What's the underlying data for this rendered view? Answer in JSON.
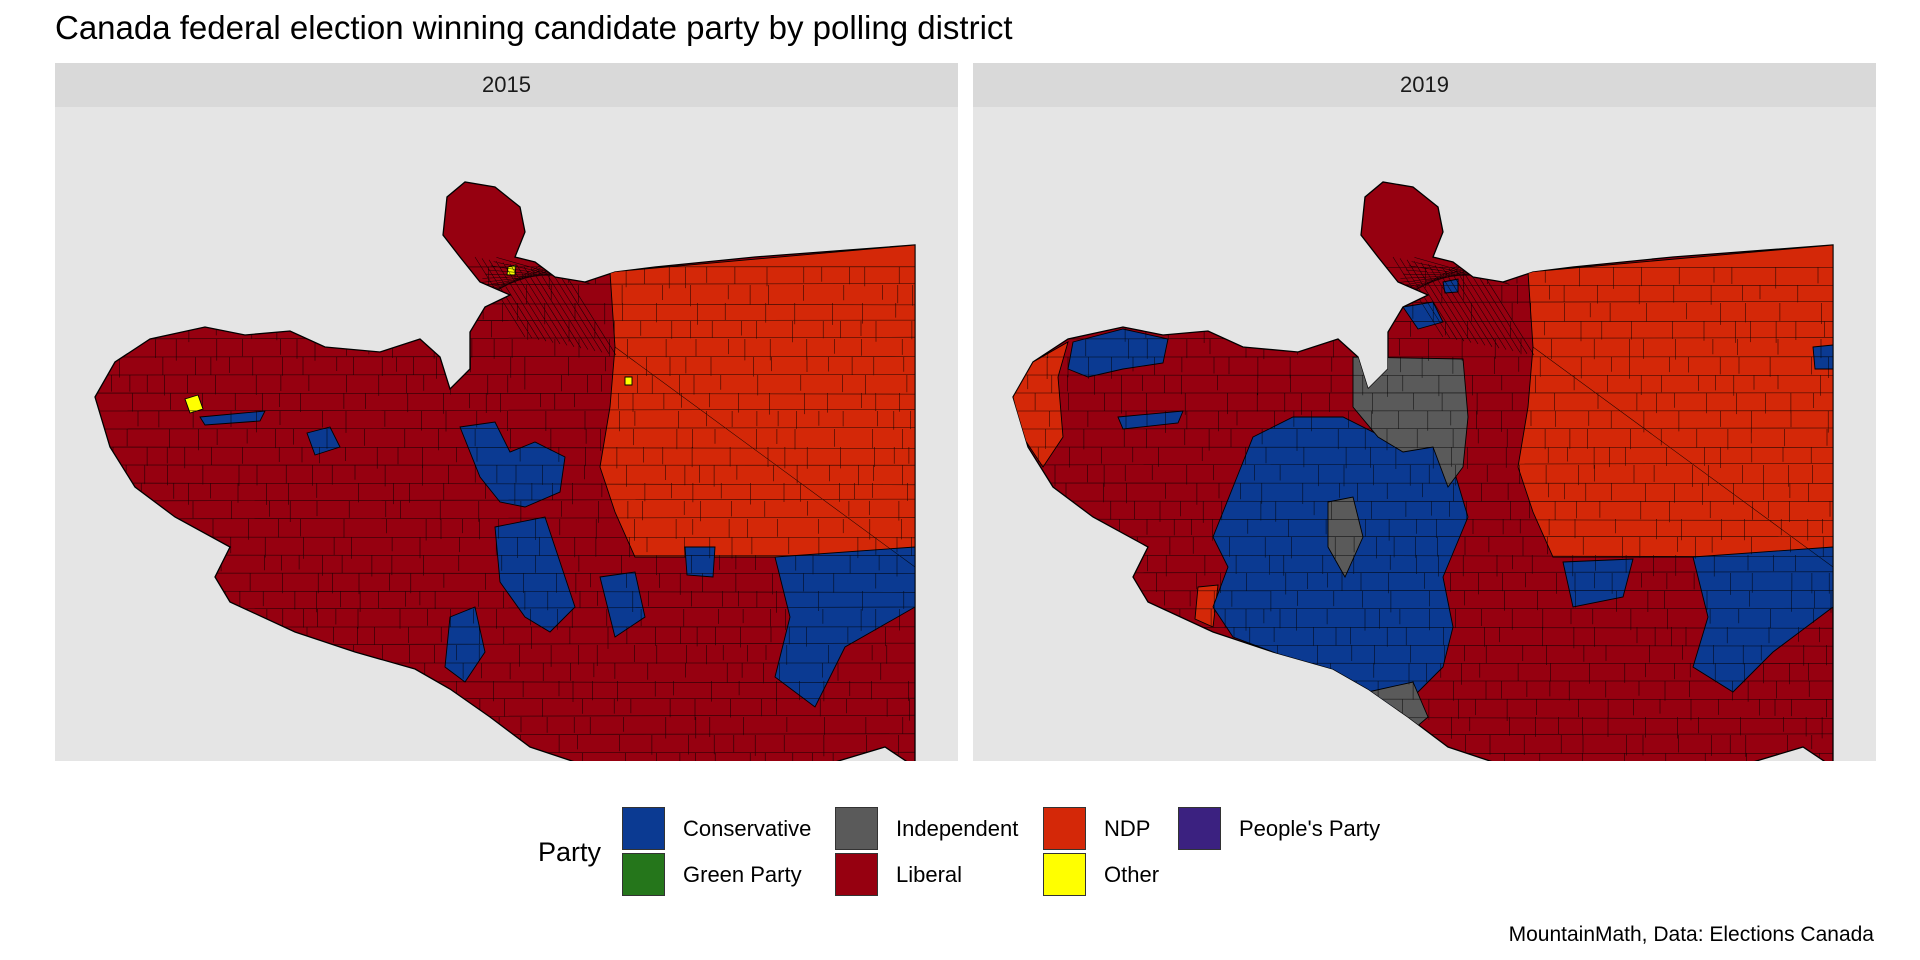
{
  "title": "Canada federal election winning candidate party by polling district",
  "panels": [
    {
      "label": "2015"
    },
    {
      "label": "2019"
    }
  ],
  "legend": {
    "title": "Party",
    "items": [
      {
        "label": "Conservative",
        "color": "#0b3a92"
      },
      {
        "label": "Green Party",
        "color": "#25761b"
      },
      {
        "label": "Independent",
        "color": "#5a5a5a"
      },
      {
        "label": "Liberal",
        "color": "#960010"
      },
      {
        "label": "NDP",
        "color": "#d42808"
      },
      {
        "label": "Other",
        "color": "#ffff00"
      },
      {
        "label": "People's Party",
        "color": "#3b2180"
      }
    ]
  },
  "caption": "MountainMath, Data: Elections Canada"
}
